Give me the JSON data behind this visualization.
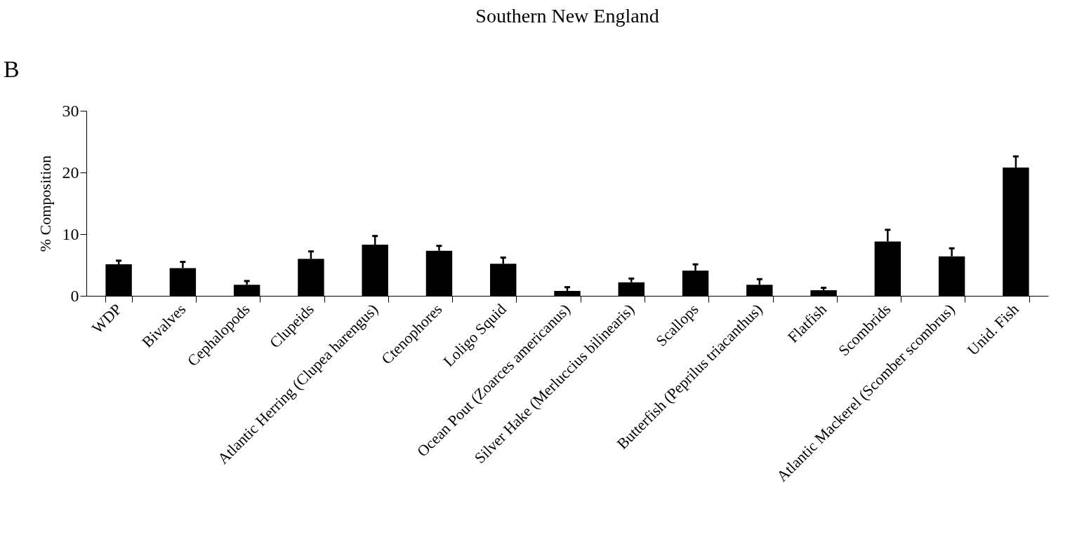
{
  "chart_data": {
    "type": "bar",
    "title": "Southern New England",
    "ylabel": "% Composition",
    "annotations": [
      "B"
    ],
    "categories": [
      "WDP",
      "Bivalves",
      "Cephalopods",
      "Clupeids",
      "Atlantic Herring (Clupea harengus)",
      "Ctenophores",
      "Loligo Squid",
      "Ocean Pout (Zoarces americanus)",
      "Silver Hake (Merluccius bilinearis)",
      "Scallops",
      "Butterfish (Peprilus triacanthus)",
      "Flatfish",
      "Scombrids",
      "Atlantic Mackerel (Scomber scombrus)",
      "Unid. Fish"
    ],
    "values": [
      5.1,
      4.5,
      1.8,
      6.0,
      8.3,
      7.3,
      5.2,
      0.8,
      2.2,
      4.1,
      1.8,
      0.9,
      8.8,
      6.4,
      20.8
    ],
    "errors": [
      [
        5.1,
        5.7
      ],
      [
        4.5,
        5.5
      ],
      [
        1.8,
        2.4
      ],
      [
        6.0,
        7.2
      ],
      [
        8.3,
        9.7
      ],
      [
        7.3,
        8.1
      ],
      [
        5.2,
        6.2
      ],
      [
        0.8,
        1.4
      ],
      [
        2.2,
        2.8
      ],
      [
        4.1,
        5.1
      ],
      [
        1.8,
        2.7
      ],
      [
        0.9,
        1.3
      ],
      [
        8.8,
        10.7
      ],
      [
        6.4,
        7.7
      ],
      [
        20.8,
        22.6
      ]
    ],
    "color": "#000000",
    "ylim": [
      0,
      30
    ],
    "yticks": [
      0,
      10,
      20,
      30
    ],
    "grid": false
  }
}
